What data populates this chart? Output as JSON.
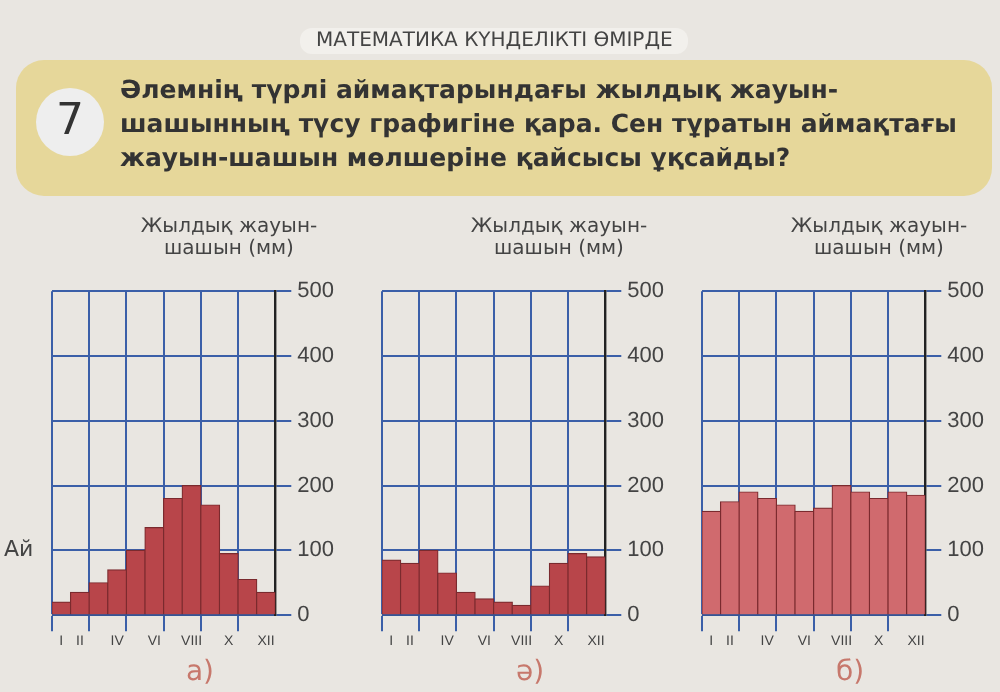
{
  "chart_data": [
    {
      "type": "bar",
      "title": "а)",
      "xlabel": "Ай",
      "ylabel": "Жылдық жауын-шашын (мм)",
      "annotations": [
        "МАТЕМАТИКА КҮНДЕЛІКТІ ӨМІРДЕ",
        "7",
        "Әлемнің түрлі аймақтарындағы жылдық жауын-шашынның түсу графигіне қара. Сен тұратын аймақтағы жауын-шашын мөлшеріне қайсысы ұқсайды?"
      ],
      "categories": [
        "I",
        "II",
        null,
        "IV",
        null,
        "VI",
        null,
        "VIII",
        null,
        "X",
        null,
        "XII"
      ],
      "values": [
        20,
        35,
        50,
        70,
        100,
        135,
        180,
        200,
        170,
        95,
        55,
        35
      ],
      "color": "#b8454a",
      "ylim": [
        0,
        500
      ],
      "yticks": [
        0,
        100,
        200,
        300,
        400,
        500
      ],
      "grid": true
    },
    {
      "type": "bar",
      "title": "ә)",
      "ylabel": "Жылдық жауын-шашын (мм)",
      "categories": [
        "I",
        "II",
        null,
        "IV",
        null,
        "VI",
        null,
        "VIII",
        null,
        "X",
        null,
        "XII"
      ],
      "values": [
        85,
        80,
        100,
        65,
        35,
        25,
        20,
        15,
        45,
        80,
        95,
        90
      ],
      "color": "#b8454a",
      "ylim": [
        0,
        500
      ],
      "yticks": [
        0,
        100,
        200,
        300,
        400,
        500
      ],
      "grid": true
    },
    {
      "type": "bar",
      "title": "б)",
      "ylabel": "Жылдық жауын-шашын (мм)",
      "categories": [
        "I",
        "II",
        null,
        "IV",
        null,
        "VI",
        null,
        "VIII",
        null,
        "X",
        null,
        "XII"
      ],
      "values": [
        160,
        175,
        190,
        180,
        170,
        160,
        165,
        200,
        190,
        180,
        190,
        185
      ],
      "color": "#d06a6e",
      "ylim": [
        0,
        500
      ],
      "yticks": [
        0,
        100,
        200,
        300,
        400,
        500
      ],
      "grid": true
    }
  ]
}
